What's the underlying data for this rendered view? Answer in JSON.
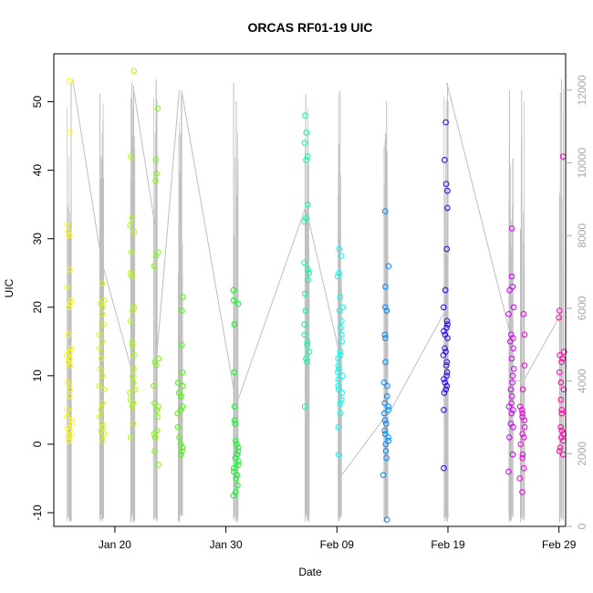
{
  "chart_data": {
    "type": "scatter",
    "title": "ORCAS RF01-19 UIC",
    "xlabel": "Date",
    "ylabel": "UIC",
    "x_range_days": [
      14.5,
      60.6
    ],
    "ylim": [
      -12,
      57
    ],
    "y2lim": [
      0,
      13000
    ],
    "x_ticks": [
      {
        "label": "Jan 20",
        "day": 20
      },
      {
        "label": "Jan 30",
        "day": 30
      },
      {
        "label": "Feb 09",
        "day": 40
      },
      {
        "label": "Feb 19",
        "day": 50
      },
      {
        "label": "Feb 29",
        "day": 60
      }
    ],
    "y_ticks": [
      -10,
      0,
      10,
      20,
      30,
      40,
      50
    ],
    "y2_ticks": [
      0,
      2000,
      4000,
      6000,
      8000,
      10000,
      12000
    ],
    "altitude_color": "#bebebe",
    "altitude_trace_note": "secondary right axis (grey trace)",
    "grid": false,
    "series": [
      {
        "color": "#ffff00",
        "x_day": 15.9,
        "y": [
          53,
          45.5,
          32,
          31,
          30.5,
          25.5,
          23,
          21,
          20.5,
          20,
          16,
          14,
          13.5,
          13,
          12.5,
          12,
          11.5,
          9,
          8,
          7,
          5,
          4,
          3.5,
          3,
          2.5,
          2,
          1.5,
          1,
          0.5
        ]
      },
      {
        "color": "#ccff00",
        "x_day": 18.8,
        "y": [
          23.5,
          21,
          20.5,
          20,
          19,
          17.5,
          16,
          15,
          14,
          12.5,
          11,
          10,
          8.5,
          8,
          6,
          5,
          4,
          3,
          2.5,
          2,
          1.5,
          0.5
        ]
      },
      {
        "color": "#aaff00",
        "x_day": 21.6,
        "y": [
          54.5,
          42,
          33,
          32,
          31,
          28,
          25,
          24.5,
          20,
          19.5,
          18,
          15,
          14.5,
          13,
          11,
          10,
          9,
          8,
          7.5,
          6.5,
          6,
          5.5,
          3,
          1
        ]
      },
      {
        "color": "#77ff00",
        "x_day": 23.7,
        "y": [
          49,
          41.5,
          39.5,
          38.5,
          28,
          27.5,
          26,
          12.5,
          12,
          11.5,
          8.5,
          6,
          5.5,
          5,
          4,
          2,
          1.5,
          1,
          -1,
          -3
        ]
      },
      {
        "color": "#44ff00",
        "x_day": 25.9,
        "y": [
          21.5,
          19.5,
          14.5,
          10.5,
          9,
          8.5,
          7.5,
          7,
          5.5,
          5,
          4.5,
          2.5,
          1,
          0,
          -0.5,
          -1,
          -1.5
        ]
      },
      {
        "color": "#00ff22",
        "x_day": 30.9,
        "y": [
          22.5,
          21,
          20.5,
          17.5,
          10.5,
          5.5,
          3.5,
          3,
          0.5,
          0,
          -0.5,
          -1,
          -1.5,
          -2,
          -2.5,
          -3,
          -3.5,
          -4,
          -4.5,
          -5,
          -6,
          -7,
          -7.5
        ]
      },
      {
        "color": "#00ff99",
        "x_day": 37.3,
        "y": [
          48,
          45.5,
          44,
          42,
          41.5,
          35,
          33,
          32.5,
          26.5,
          25.5,
          25,
          24,
          22,
          19.5,
          17.5,
          16,
          15,
          14.5,
          13.5,
          12.5,
          12,
          5.5
        ]
      },
      {
        "color": "#00ffee",
        "x_day": 40.3,
        "y": [
          28.5,
          27.5,
          25,
          24.5,
          21.5,
          20,
          19.5,
          18,
          17,
          16,
          15,
          13.5,
          13,
          12.5,
          11.5,
          11,
          10.5,
          10,
          9.5,
          8.5,
          8,
          7.5,
          6.5,
          6,
          4.5,
          2.5,
          -1.5
        ]
      },
      {
        "color": "#0088ff",
        "x_day": 44.4,
        "y": [
          34,
          26,
          23,
          20,
          19.5,
          16,
          15.5,
          12,
          9,
          8.5,
          7,
          6,
          5.5,
          5,
          4.5,
          3.5,
          3,
          2,
          1.5,
          1,
          0.5,
          0,
          -1,
          -2,
          -4.5,
          -11
        ]
      },
      {
        "color": "#2200ff",
        "x_day": 49.8,
        "y": [
          47,
          41.5,
          38,
          37,
          34.5,
          28.5,
          22.5,
          20,
          18,
          17.5,
          17,
          16.5,
          16,
          15.5,
          14,
          13.5,
          13,
          12,
          11.5,
          10.5,
          10,
          9.5,
          9,
          8.5,
          8,
          7.5,
          5,
          -3.5
        ]
      },
      {
        "color": "#cc00ff",
        "x_day": 55.7,
        "y": [
          31.5,
          24.5,
          23,
          22.5,
          20,
          19,
          16,
          15.5,
          15,
          14,
          12.5,
          11,
          10,
          9,
          8,
          7,
          6,
          5.5,
          5,
          4.5,
          3,
          2.5,
          1,
          -1.5,
          -4
        ]
      },
      {
        "color": "#ee00dd",
        "x_day": 56.7,
        "y": [
          19,
          16,
          11.5,
          8,
          5.5,
          5,
          4.5,
          4,
          3.5,
          2.5,
          1.5,
          1,
          0,
          -1.5,
          -2,
          -3.5,
          -5,
          -7
        ]
      },
      {
        "color": "#ff00aa",
        "x_day": 60.2,
        "y": [
          42,
          19.5,
          18.5,
          13.5,
          13,
          12.5,
          12,
          10.5,
          9,
          8,
          6.5,
          5,
          4.5,
          2.5,
          2,
          1.5,
          1,
          0.5,
          -0.5,
          -1,
          -1.5
        ]
      }
    ],
    "altitude_flights": [
      {
        "day": 15.9,
        "max": 12200
      },
      {
        "day": 18.8,
        "max": 11900
      },
      {
        "day": 21.6,
        "max": 12200
      },
      {
        "day": 23.7,
        "max": 12300
      },
      {
        "day": 25.9,
        "max": 11900
      },
      {
        "day": 30.9,
        "max": 12200
      },
      {
        "day": 37.3,
        "max": 11900
      },
      {
        "day": 40.3,
        "max": 12000
      },
      {
        "day": 44.4,
        "max": 11700
      },
      {
        "day": 49.8,
        "max": 12200
      },
      {
        "day": 55.7,
        "max": 12000
      },
      {
        "day": 56.7,
        "max": 12000
      },
      {
        "day": 60.2,
        "max": 12300
      }
    ],
    "altitude_connectors": [
      [
        16.2,
        12300,
        18.7,
        7500
      ],
      [
        18.9,
        7200,
        21.5,
        4300
      ],
      [
        21.7,
        12000,
        23.6,
        8300
      ],
      [
        23.8,
        4800,
        25.8,
        12000
      ],
      [
        26.0,
        12000,
        30.8,
        3600
      ],
      [
        31.0,
        3400,
        37.2,
        8800
      ],
      [
        37.4,
        8500,
        40.2,
        4800
      ],
      [
        40.4,
        1400,
        44.3,
        3000
      ],
      [
        44.5,
        3000,
        49.7,
        5900
      ],
      [
        49.9,
        12200,
        55.6,
        5300
      ],
      [
        55.8,
        4000,
        56.6,
        4000
      ],
      [
        56.8,
        4000,
        60.1,
        5800
      ]
    ]
  }
}
